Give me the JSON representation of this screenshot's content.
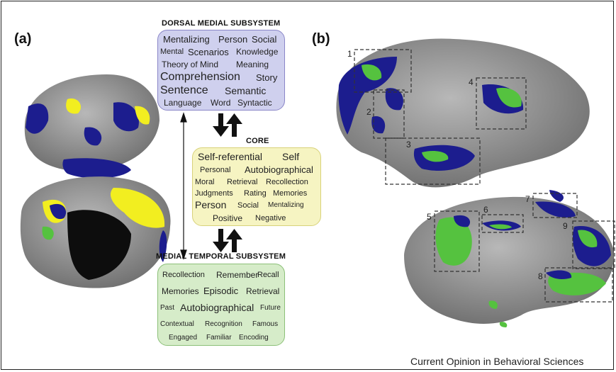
{
  "panels": {
    "a": "(a)",
    "b": "(b)"
  },
  "dorsal": {
    "title": "DORSAL MEDIAL SUBSYSTEM",
    "words": [
      "Mentalizing",
      "Person",
      "Social",
      "Mental",
      "Scenarios",
      "Knowledge",
      "Theory of Mind",
      "Meaning",
      "Comprehension",
      "Story",
      "Sentence",
      "Semantic",
      "Language",
      "Word",
      "Syntactic"
    ]
  },
  "core": {
    "title": "CORE",
    "words": [
      "Self-referential",
      "Self",
      "Personal",
      "Autobiographical",
      "Moral",
      "Retrieval",
      "Recollection",
      "Judgments",
      "Rating",
      "Memories",
      "Person",
      "Social",
      "Mentalizing",
      "Positive",
      "Negative"
    ]
  },
  "medial": {
    "title": "MEDIAL TEMPORAL SUBSYSTEM",
    "words": [
      "Recollection",
      "Remember",
      "Recall",
      "Memories",
      "Episodic",
      "Retrieval",
      "Past",
      "Autobiographical",
      "Future",
      "Contextual",
      "Recognition",
      "Famous",
      "Engaged",
      "Familiar",
      "Encoding"
    ]
  },
  "region_labels": [
    "1",
    "2",
    "3",
    "4",
    "5",
    "6",
    "7",
    "8",
    "9"
  ],
  "footer": "Current Opinion in Behavioral Sciences",
  "colors": {
    "dorsal_bg": "#cfd0ee",
    "dorsal_border": "#8a86c8",
    "core_bg": "#f6f4c2",
    "core_border": "#d8d27a",
    "medial_bg": "#d6ecc9",
    "medial_border": "#8cc078",
    "brain": "#8f8f8f",
    "blue": "#1c1d8e",
    "yellow": "#f2ee20",
    "green": "#55c23f"
  }
}
